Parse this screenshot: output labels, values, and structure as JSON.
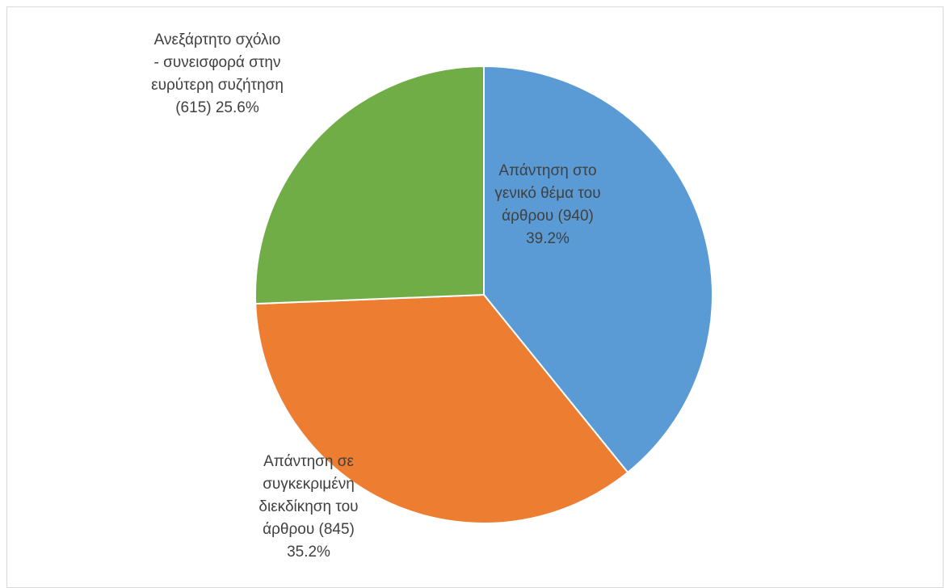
{
  "chart_data": {
    "type": "pie",
    "start_angle_deg": 0,
    "direction": "clockwise",
    "slices": [
      {
        "name": "Απάντηση στο γενικό θέμα του άρθρου",
        "value": 940,
        "percent": 39.2,
        "color": "#5B9BD5",
        "label_lines": [
          "Απάντηση στο",
          "γενικό θέμα του",
          "άρθρου (940)",
          "39.2%"
        ]
      },
      {
        "name": "Απάντηση σε συγκεκριμένη διεκδίκηση του άρθρου",
        "value": 845,
        "percent": 35.2,
        "color": "#ED7D31",
        "label_lines": [
          "Απάντηση σε",
          "συγκεκριμένη",
          "διεκδίκηση του",
          "άρθρου (845)",
          "35.2%"
        ]
      },
      {
        "name": "Ανεξάρτητο σχόλιο - συνεισφορά στην ευρύτερη συζήτηση",
        "value": 615,
        "percent": 25.6,
        "color": "#70AD47",
        "label_lines": [
          "Ανεξάρτητο σχόλιο",
          "- συνεισφορά στην",
          "ευρύτερη συζήτηση",
          "(615) 25.6%"
        ]
      }
    ],
    "legend": "none"
  }
}
